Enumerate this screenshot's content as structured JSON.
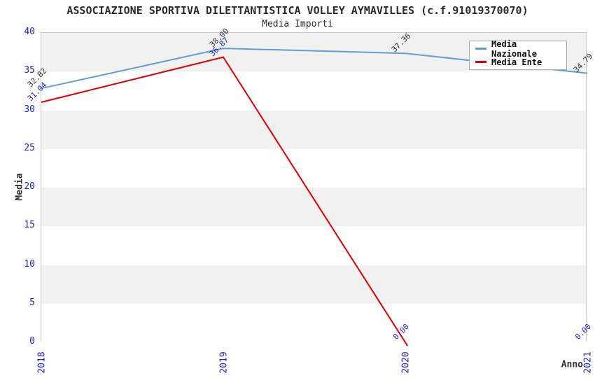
{
  "chart_data": {
    "type": "line",
    "title": "ASSOCIAZIONE SPORTIVA DILETTANTISTICA VOLLEY AYMAVILLES (c.f.91019370070)",
    "subtitle": "Media Importi",
    "xlabel": "Anno",
    "ylabel": "Media",
    "x": [
      "2018",
      "2019",
      "2020",
      "2021"
    ],
    "ylim": [
      0,
      40
    ],
    "yticks": [
      0,
      5,
      10,
      15,
      20,
      25,
      30,
      35,
      40
    ],
    "grid": "horizontal-bands",
    "legend_position": "top-right",
    "series": [
      {
        "name": "Media Nazionale",
        "color": "#639bd7",
        "label_color": "#333333",
        "values": [
          32.82,
          38.0,
          37.36,
          34.79
        ]
      },
      {
        "name": "Media Ente",
        "color": "#e00000",
        "label_color": "#2222cc",
        "values": [
          31.04,
          36.87,
          0.0,
          0.0
        ],
        "line_end_index": 2
      }
    ]
  },
  "colors": {
    "axis_text": "#2222cc",
    "title_text": "#2b2b2b",
    "band_gray": "#f1f1f1",
    "band_white": "#ffffff",
    "plot_border": "#c9c9c9"
  }
}
